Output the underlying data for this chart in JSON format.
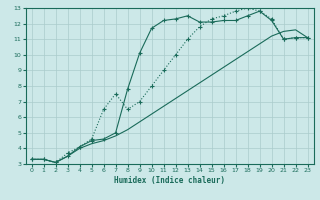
{
  "xlabel": "Humidex (Indice chaleur)",
  "bg_color": "#cce8e8",
  "line_color": "#1a6b5a",
  "grid_color": "#aacccc",
  "xlim": [
    -0.5,
    23.5
  ],
  "ylim": [
    3,
    13
  ],
  "xticks": [
    0,
    1,
    2,
    3,
    4,
    5,
    6,
    7,
    8,
    9,
    10,
    11,
    12,
    13,
    14,
    15,
    16,
    17,
    18,
    19,
    20,
    21,
    22,
    23
  ],
  "yticks": [
    3,
    4,
    5,
    6,
    7,
    8,
    9,
    10,
    11,
    12,
    13
  ],
  "line1_x": [
    0,
    1,
    2,
    3,
    4,
    5,
    6,
    7,
    8,
    9,
    10,
    11,
    12,
    13,
    14,
    15,
    16,
    17,
    18,
    19,
    20,
    21,
    22,
    23
  ],
  "line1_y": [
    3.3,
    3.3,
    3.1,
    3.5,
    4.1,
    4.5,
    4.6,
    5.0,
    7.8,
    10.1,
    11.7,
    12.2,
    12.3,
    12.5,
    12.1,
    12.1,
    12.2,
    12.2,
    12.5,
    12.8,
    12.2,
    11.0,
    11.1,
    11.1
  ],
  "line2_x": [
    0,
    1,
    2,
    3,
    4,
    5,
    6,
    7,
    8,
    9,
    10,
    11,
    12,
    13,
    14,
    15,
    16,
    17,
    18,
    19,
    20,
    21,
    22,
    23
  ],
  "line2_y": [
    3.3,
    3.3,
    3.1,
    3.7,
    4.1,
    4.6,
    6.5,
    7.5,
    6.5,
    7.0,
    8.0,
    9.0,
    10.0,
    11.0,
    11.8,
    12.3,
    12.5,
    12.8,
    13.0,
    12.8,
    12.3,
    11.0,
    11.1,
    11.1
  ],
  "line3_x": [
    0,
    1,
    2,
    3,
    4,
    5,
    6,
    7,
    8,
    9,
    10,
    11,
    12,
    13,
    14,
    15,
    16,
    17,
    18,
    19,
    20,
    21,
    22,
    23
  ],
  "line3_y": [
    3.3,
    3.3,
    3.1,
    3.5,
    4.0,
    4.3,
    4.5,
    4.8,
    5.2,
    5.7,
    6.2,
    6.7,
    7.2,
    7.7,
    8.2,
    8.7,
    9.2,
    9.7,
    10.2,
    10.7,
    11.2,
    11.5,
    11.6,
    11.1
  ]
}
